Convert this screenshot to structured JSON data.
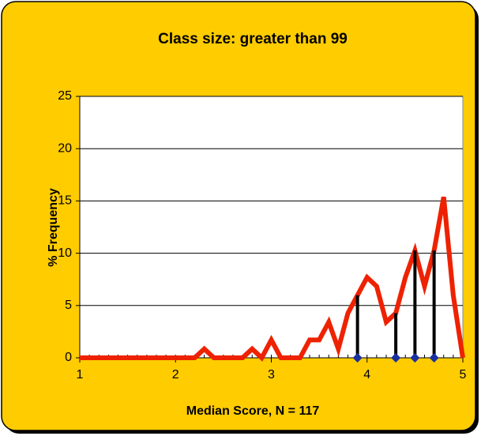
{
  "chart_data": {
    "type": "line",
    "title": "Class size: greater than 99",
    "x_label": "Median Score, N = 117",
    "y_label": "% Frequency",
    "xlim": [
      1,
      5
    ],
    "xticks": [
      1,
      2,
      3,
      4,
      5
    ],
    "ylim": [
      0,
      25
    ],
    "yticks": [
      0,
      5,
      10,
      15,
      20,
      25
    ],
    "grid": true,
    "series": [
      {
        "color": "#ee2200",
        "x": [
          1,
          1.1,
          1.2,
          1.3,
          1.4,
          1.5,
          1.6,
          1.7,
          1.8,
          1.9,
          2,
          2.1,
          2.2,
          2.3,
          2.4,
          2.5,
          2.6,
          2.7,
          2.8,
          2.9,
          3,
          3.1,
          3.2,
          3.3,
          3.4,
          3.5,
          3.6,
          3.7,
          3.8,
          3.9,
          4,
          4.1,
          4.2,
          4.3,
          4.4,
          4.5,
          4.6,
          4.7,
          4.8,
          4.9,
          5
        ],
        "values": [
          0,
          0,
          0,
          0,
          0,
          0,
          0,
          0,
          0,
          0,
          0,
          0,
          0,
          0.85,
          0,
          0,
          0,
          0,
          0.85,
          0,
          1.71,
          0,
          0,
          0,
          1.71,
          1.71,
          3.42,
          0.85,
          4.27,
          5.98,
          7.69,
          6.84,
          3.42,
          4.27,
          7.69,
          10.26,
          6.84,
          10.26,
          15.38,
          5.98,
          0
        ]
      },
      {
        "type": "stem",
        "color": "#000000",
        "marker_color": "#1a2fa0",
        "x": [
          3.9,
          4.3,
          4.5,
          4.7
        ],
        "values": [
          5.98,
          4.27,
          10.26,
          10.26
        ]
      }
    ]
  }
}
